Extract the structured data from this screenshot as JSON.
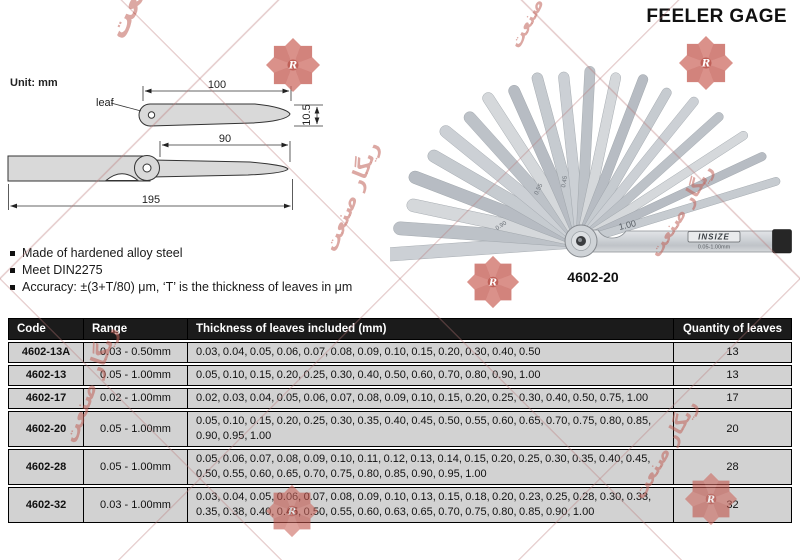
{
  "title": "FEELER GAGE",
  "unit_label": "Unit: mm",
  "diagram": {
    "leaf_label": "leaf",
    "dims": {
      "leaf_length": "100",
      "leaf_width": "10.5",
      "blade_length": "90",
      "total_length": "195"
    }
  },
  "photo": {
    "model_label": "4602-20",
    "brand": "INSIZE",
    "range_marking": "0.05-1.00mm",
    "leaf_markings": [
      "0.45",
      "0.55",
      "0.90",
      "1.00"
    ]
  },
  "features": [
    "Made of hardened alloy steel",
    "Meet DIN2275",
    "Accuracy: ±(3+T/80) μm, ‘T’ is the thickness of leaves in μm"
  ],
  "table": {
    "headers": [
      "Code",
      "Range",
      "Thickness of leaves included (mm)",
      "Quantity of leaves"
    ],
    "rows": [
      {
        "code": "4602-13A",
        "range": "0.03 - 0.50mm",
        "thickness": "0.03, 0.04, 0.05, 0.06, 0.07, 0.08, 0.09, 0.10, 0.15, 0.20, 0.30, 0.40, 0.50",
        "quantity": "13"
      },
      {
        "code": "4602-13",
        "range": "0.05 - 1.00mm",
        "thickness": "0.05, 0.10, 0.15, 0.20, 0.25, 0.30, 0.40, 0.50, 0.60, 0.70, 0.80, 0.90, 1.00",
        "quantity": "13"
      },
      {
        "code": "4602-17",
        "range": "0.02 - 1.00mm",
        "thickness": "0.02, 0.03, 0.04, 0.05, 0.06, 0.07, 0.08, 0.09, 0.10, 0.15, 0.20, 0.25, 0.30, 0.40, 0.50, 0.75, 1.00",
        "quantity": "17"
      },
      {
        "code": "4602-20",
        "range": "0.05 - 1.00mm",
        "thickness": "0.05, 0.10, 0.15, 0.20, 0.25, 0.30, 0.35, 0.40, 0.45, 0.50, 0.55, 0.60, 0.65, 0.70, 0.75, 0.80, 0.85, 0.90, 0.95, 1.00",
        "quantity": "20"
      },
      {
        "code": "4602-28",
        "range": "0.05 - 1.00mm",
        "thickness": "0.05, 0.06, 0.07, 0.08, 0.09, 0.10, 0.11, 0.12, 0.13, 0.14, 0.15, 0.20, 0.25, 0.30, 0.35, 0.40, 0.45, 0.50, 0.55, 0.60, 0.65, 0.70, 0.75, 0.80, 0.85, 0.90, 0.95, 1.00",
        "quantity": "28"
      },
      {
        "code": "4602-32",
        "range": "0.03 - 1.00mm",
        "thickness": "0.03, 0.04, 0.05, 0.06, 0.07, 0.08, 0.09, 0.10, 0.13, 0.15, 0.18, 0.20, 0.23, 0.25, 0.28, 0.30, 0.33, 0.35, 0.38, 0.40, 0.45, 0.50, 0.55, 0.60, 0.63, 0.65, 0.70, 0.75, 0.80, 0.85, 0.90, 1.00",
        "quantity": "32"
      }
    ]
  },
  "watermark": {
    "text": "ریگار صنعت",
    "logo_letter": "R"
  },
  "colors": {
    "table_header_bg": "#1b1b1b",
    "table_row_bg": "#d2d2d2",
    "watermark_red": "#c86158"
  }
}
